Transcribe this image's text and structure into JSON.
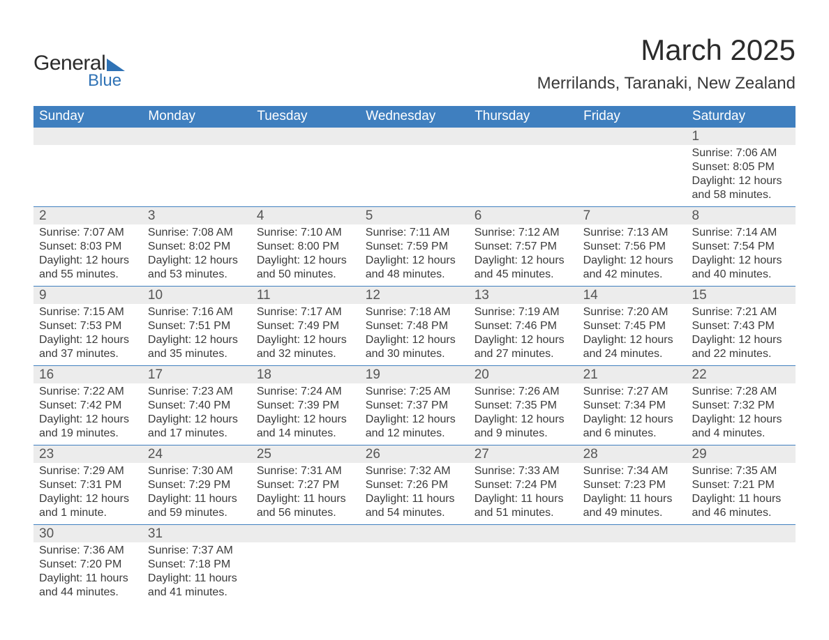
{
  "logo": {
    "general": "General",
    "blue": "Blue"
  },
  "title": "March 2025",
  "location": "Merrilands, Taranaki, New Zealand",
  "colors": {
    "header_bg": "#3f7fbf",
    "header_text": "#ffffff",
    "daynum_bg": "#ececec",
    "row_border": "#3f7fbf",
    "body_text": "#3a3a3a",
    "daynum_text": "#555555",
    "logo_accent": "#2f72b5",
    "page_bg": "#ffffff"
  },
  "day_headers": [
    "Sunday",
    "Monday",
    "Tuesday",
    "Wednesday",
    "Thursday",
    "Friday",
    "Saturday"
  ],
  "weeks": [
    [
      null,
      null,
      null,
      null,
      null,
      null,
      {
        "n": "1",
        "sr": "Sunrise: 7:06 AM",
        "ss": "Sunset: 8:05 PM",
        "d1": "Daylight: 12 hours",
        "d2": "and 58 minutes."
      }
    ],
    [
      {
        "n": "2",
        "sr": "Sunrise: 7:07 AM",
        "ss": "Sunset: 8:03 PM",
        "d1": "Daylight: 12 hours",
        "d2": "and 55 minutes."
      },
      {
        "n": "3",
        "sr": "Sunrise: 7:08 AM",
        "ss": "Sunset: 8:02 PM",
        "d1": "Daylight: 12 hours",
        "d2": "and 53 minutes."
      },
      {
        "n": "4",
        "sr": "Sunrise: 7:10 AM",
        "ss": "Sunset: 8:00 PM",
        "d1": "Daylight: 12 hours",
        "d2": "and 50 minutes."
      },
      {
        "n": "5",
        "sr": "Sunrise: 7:11 AM",
        "ss": "Sunset: 7:59 PM",
        "d1": "Daylight: 12 hours",
        "d2": "and 48 minutes."
      },
      {
        "n": "6",
        "sr": "Sunrise: 7:12 AM",
        "ss": "Sunset: 7:57 PM",
        "d1": "Daylight: 12 hours",
        "d2": "and 45 minutes."
      },
      {
        "n": "7",
        "sr": "Sunrise: 7:13 AM",
        "ss": "Sunset: 7:56 PM",
        "d1": "Daylight: 12 hours",
        "d2": "and 42 minutes."
      },
      {
        "n": "8",
        "sr": "Sunrise: 7:14 AM",
        "ss": "Sunset: 7:54 PM",
        "d1": "Daylight: 12 hours",
        "d2": "and 40 minutes."
      }
    ],
    [
      {
        "n": "9",
        "sr": "Sunrise: 7:15 AM",
        "ss": "Sunset: 7:53 PM",
        "d1": "Daylight: 12 hours",
        "d2": "and 37 minutes."
      },
      {
        "n": "10",
        "sr": "Sunrise: 7:16 AM",
        "ss": "Sunset: 7:51 PM",
        "d1": "Daylight: 12 hours",
        "d2": "and 35 minutes."
      },
      {
        "n": "11",
        "sr": "Sunrise: 7:17 AM",
        "ss": "Sunset: 7:49 PM",
        "d1": "Daylight: 12 hours",
        "d2": "and 32 minutes."
      },
      {
        "n": "12",
        "sr": "Sunrise: 7:18 AM",
        "ss": "Sunset: 7:48 PM",
        "d1": "Daylight: 12 hours",
        "d2": "and 30 minutes."
      },
      {
        "n": "13",
        "sr": "Sunrise: 7:19 AM",
        "ss": "Sunset: 7:46 PM",
        "d1": "Daylight: 12 hours",
        "d2": "and 27 minutes."
      },
      {
        "n": "14",
        "sr": "Sunrise: 7:20 AM",
        "ss": "Sunset: 7:45 PM",
        "d1": "Daylight: 12 hours",
        "d2": "and 24 minutes."
      },
      {
        "n": "15",
        "sr": "Sunrise: 7:21 AM",
        "ss": "Sunset: 7:43 PM",
        "d1": "Daylight: 12 hours",
        "d2": "and 22 minutes."
      }
    ],
    [
      {
        "n": "16",
        "sr": "Sunrise: 7:22 AM",
        "ss": "Sunset: 7:42 PM",
        "d1": "Daylight: 12 hours",
        "d2": "and 19 minutes."
      },
      {
        "n": "17",
        "sr": "Sunrise: 7:23 AM",
        "ss": "Sunset: 7:40 PM",
        "d1": "Daylight: 12 hours",
        "d2": "and 17 minutes."
      },
      {
        "n": "18",
        "sr": "Sunrise: 7:24 AM",
        "ss": "Sunset: 7:39 PM",
        "d1": "Daylight: 12 hours",
        "d2": "and 14 minutes."
      },
      {
        "n": "19",
        "sr": "Sunrise: 7:25 AM",
        "ss": "Sunset: 7:37 PM",
        "d1": "Daylight: 12 hours",
        "d2": "and 12 minutes."
      },
      {
        "n": "20",
        "sr": "Sunrise: 7:26 AM",
        "ss": "Sunset: 7:35 PM",
        "d1": "Daylight: 12 hours",
        "d2": "and 9 minutes."
      },
      {
        "n": "21",
        "sr": "Sunrise: 7:27 AM",
        "ss": "Sunset: 7:34 PM",
        "d1": "Daylight: 12 hours",
        "d2": "and 6 minutes."
      },
      {
        "n": "22",
        "sr": "Sunrise: 7:28 AM",
        "ss": "Sunset: 7:32 PM",
        "d1": "Daylight: 12 hours",
        "d2": "and 4 minutes."
      }
    ],
    [
      {
        "n": "23",
        "sr": "Sunrise: 7:29 AM",
        "ss": "Sunset: 7:31 PM",
        "d1": "Daylight: 12 hours",
        "d2": "and 1 minute."
      },
      {
        "n": "24",
        "sr": "Sunrise: 7:30 AM",
        "ss": "Sunset: 7:29 PM",
        "d1": "Daylight: 11 hours",
        "d2": "and 59 minutes."
      },
      {
        "n": "25",
        "sr": "Sunrise: 7:31 AM",
        "ss": "Sunset: 7:27 PM",
        "d1": "Daylight: 11 hours",
        "d2": "and 56 minutes."
      },
      {
        "n": "26",
        "sr": "Sunrise: 7:32 AM",
        "ss": "Sunset: 7:26 PM",
        "d1": "Daylight: 11 hours",
        "d2": "and 54 minutes."
      },
      {
        "n": "27",
        "sr": "Sunrise: 7:33 AM",
        "ss": "Sunset: 7:24 PM",
        "d1": "Daylight: 11 hours",
        "d2": "and 51 minutes."
      },
      {
        "n": "28",
        "sr": "Sunrise: 7:34 AM",
        "ss": "Sunset: 7:23 PM",
        "d1": "Daylight: 11 hours",
        "d2": "and 49 minutes."
      },
      {
        "n": "29",
        "sr": "Sunrise: 7:35 AM",
        "ss": "Sunset: 7:21 PM",
        "d1": "Daylight: 11 hours",
        "d2": "and 46 minutes."
      }
    ],
    [
      {
        "n": "30",
        "sr": "Sunrise: 7:36 AM",
        "ss": "Sunset: 7:20 PM",
        "d1": "Daylight: 11 hours",
        "d2": "and 44 minutes."
      },
      {
        "n": "31",
        "sr": "Sunrise: 7:37 AM",
        "ss": "Sunset: 7:18 PM",
        "d1": "Daylight: 11 hours",
        "d2": "and 41 minutes."
      },
      null,
      null,
      null,
      null,
      null
    ]
  ]
}
